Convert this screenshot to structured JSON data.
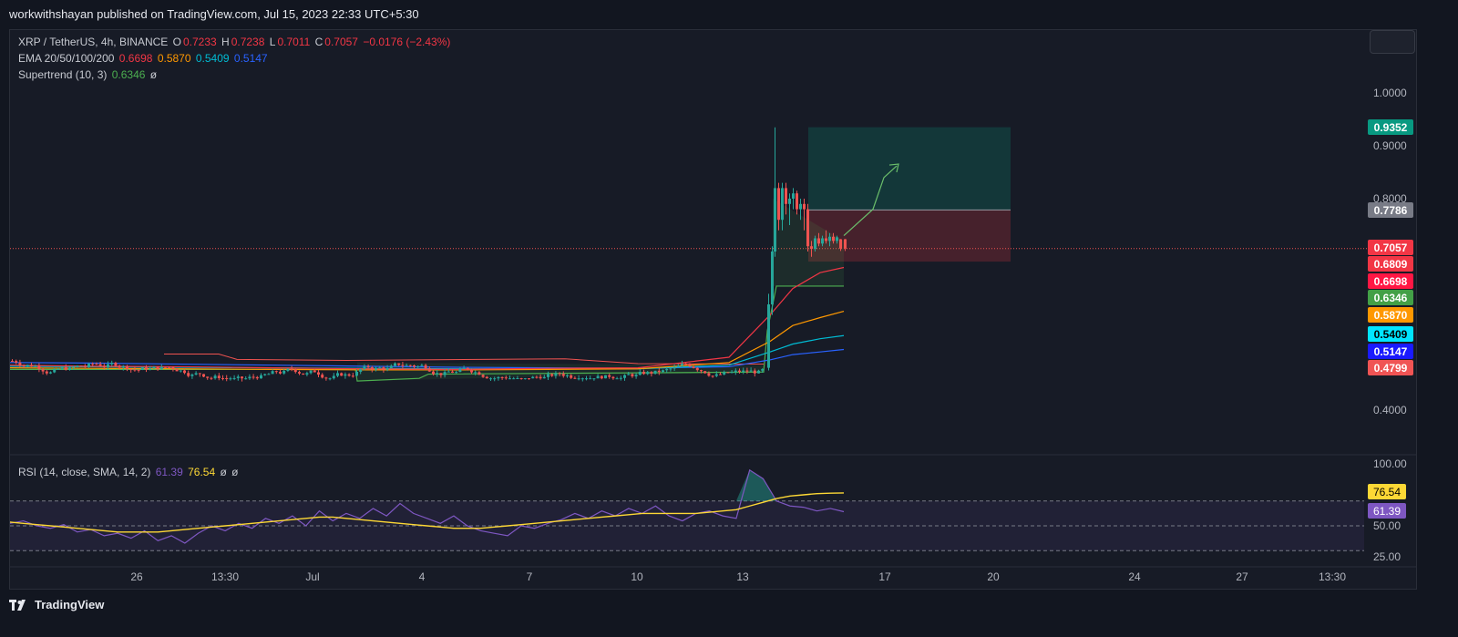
{
  "publisher": "workwithshayan published on TradingView.com, Jul 15, 2023 22:33 UTC+5:30",
  "footer": {
    "brand": "TradingView",
    "logo_icon": "tradingview-logo-icon"
  },
  "legend": {
    "symbol": "XRP / TetherUS, 4h, BINANCE",
    "o_label": "O",
    "o_value": "0.7233",
    "h_label": "H",
    "h_value": "0.7238",
    "l_label": "L",
    "l_value": "0.7011",
    "c_label": "C",
    "c_value": "0.7057",
    "change": "−0.0176 (−2.43%)",
    "ema_label": "EMA 20/50/100/200",
    "ema20": "0.6698",
    "ema50": "0.5870",
    "ema100": "0.5409",
    "ema200": "0.5147",
    "supertrend_label": "Supertrend (10, 3)",
    "supertrend_value": "0.6346",
    "supertrend_extra": "ø",
    "rsi_label": "RSI (14, close, SMA, 14, 2)",
    "rsi_value": "61.39",
    "rsi_sma": "76.54",
    "rsi_extra1": "ø",
    "rsi_extra2": "ø"
  },
  "colors": {
    "up": "#26a69a",
    "down": "#ef5350",
    "ema20": "#f23645",
    "ema50": "#ff9800",
    "ema100": "#00bcd4",
    "ema200": "#2962ff",
    "supertrend": "#4caf50",
    "rsi": "#7e57c2",
    "rsi_sma": "#fdd835",
    "price_line": "#ef5350"
  },
  "chart_data": {
    "type": "candlestick",
    "symbol": "XRP/USDT",
    "timeframe": "4h",
    "price_axis": {
      "ticks": [
        1.0,
        0.9,
        0.8,
        0.4
      ],
      "tick_labels": [
        "1.0000",
        "0.9000",
        "0.8000",
        "0.4000"
      ],
      "ylim": [
        0.32,
        1.08
      ]
    },
    "x_axis": {
      "tick_labels": [
        "26",
        "13:30",
        "Jul",
        "4",
        "7",
        "10",
        "13",
        "17",
        "20",
        "24",
        "27",
        "13:30"
      ]
    },
    "price_badges": [
      {
        "value": "0.9352",
        "color": "#089981"
      },
      {
        "value": "0.7786",
        "color": "#787b86"
      },
      {
        "value": "0.7057",
        "color": "#f23645"
      },
      {
        "value": "0.6809",
        "color": "#f23645"
      },
      {
        "value": "0.6698",
        "color": "#ff1744"
      },
      {
        "value": "0.6346",
        "color": "#43a047"
      },
      {
        "value": "0.5870",
        "color": "#ff9800"
      },
      {
        "value": "0.5409",
        "color": "#00e5ff"
      },
      {
        "value": "0.5147",
        "color": "#1a1aff"
      },
      {
        "value": "0.4799",
        "color": "#f05454"
      }
    ],
    "position_tool": {
      "entry": 0.7786,
      "target": 0.9352,
      "stop": 0.6809
    },
    "projection_arrow": [
      [
        0.7,
        0.7
      ],
      [
        0.5,
        0.78
      ],
      [
        0.0,
        0.862
      ]
    ],
    "close_price": 0.7057,
    "ema": {
      "ema20": [
        0.485,
        0.483,
        0.482,
        0.48,
        0.478,
        0.477,
        0.479,
        0.48,
        0.5,
        0.58,
        0.63,
        0.66,
        0.6698
      ],
      "ema50": [
        0.48,
        0.479,
        0.478,
        0.477,
        0.476,
        0.476,
        0.477,
        0.478,
        0.49,
        0.53,
        0.56,
        0.575,
        0.587
      ],
      "ema100": [
        0.483,
        0.482,
        0.481,
        0.48,
        0.479,
        0.478,
        0.478,
        0.478,
        0.485,
        0.51,
        0.525,
        0.535,
        0.5409
      ],
      "ema200": [
        0.49,
        0.489,
        0.487,
        0.485,
        0.483,
        0.481,
        0.48,
        0.479,
        0.482,
        0.495,
        0.505,
        0.51,
        0.5147
      ]
    },
    "rsi_axis": {
      "ticks": [
        100,
        50,
        25
      ],
      "tick_labels": [
        "100.00",
        "50.00",
        "25.00"
      ],
      "bands": [
        70,
        30
      ],
      "ylim": [
        15,
        105
      ]
    },
    "rsi_badges": [
      {
        "value": "76.54",
        "color": "#fdd835"
      },
      {
        "value": "61.39",
        "color": "#7e57c2"
      }
    ],
    "rsi": [
      52,
      54,
      50,
      48,
      51,
      45,
      47,
      42,
      44,
      40,
      46,
      38,
      42,
      36,
      44,
      50,
      46,
      52,
      48,
      56,
      52,
      58,
      50,
      62,
      54,
      60,
      56,
      64,
      58,
      68,
      60,
      56,
      52,
      58,
      50,
      46,
      44,
      42,
      50,
      48,
      52,
      55,
      60,
      56,
      62,
      58,
      64,
      60,
      66,
      58,
      54,
      60,
      62,
      58,
      56,
      95,
      88,
      70,
      66,
      65,
      62,
      64,
      61.39
    ],
    "rsi_sma_values": [
      53,
      52,
      51,
      50,
      49,
      48,
      47,
      46,
      45,
      45,
      45,
      45,
      46,
      47,
      48,
      49,
      50,
      51,
      52,
      53,
      54,
      55,
      56,
      57,
      57,
      56,
      55,
      54,
      53,
      52,
      51,
      50,
      49,
      48,
      48,
      48,
      49,
      50,
      51,
      52,
      53,
      54,
      55,
      56,
      57,
      58,
      59,
      60,
      60,
      60,
      60,
      60,
      61,
      62,
      63,
      66,
      69,
      72,
      74,
      75,
      76,
      76.3,
      76.54
    ]
  }
}
